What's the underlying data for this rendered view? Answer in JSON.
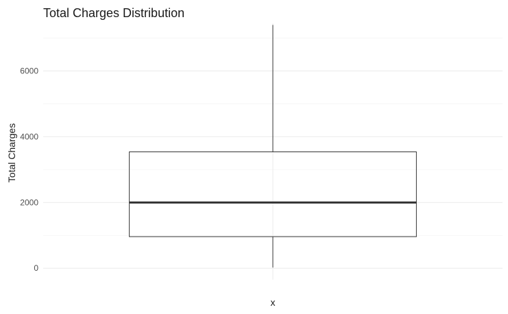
{
  "chart_data": {
    "type": "boxplot",
    "title": "Total Charges Distribution",
    "xlabel": "x",
    "ylabel": "Total Charges",
    "ylim": [
      -350,
      7450
    ],
    "y_ticks": [
      0,
      2000,
      4000,
      6000
    ],
    "grid": true,
    "legend": "none",
    "box": {
      "min": 19,
      "q1": 960,
      "median": 2000,
      "q3": 3540,
      "max": 7400
    },
    "colors": {
      "box_outline": "#333333",
      "median": "#333333",
      "whisker": "#333333",
      "grid": "#ebebeb"
    }
  }
}
